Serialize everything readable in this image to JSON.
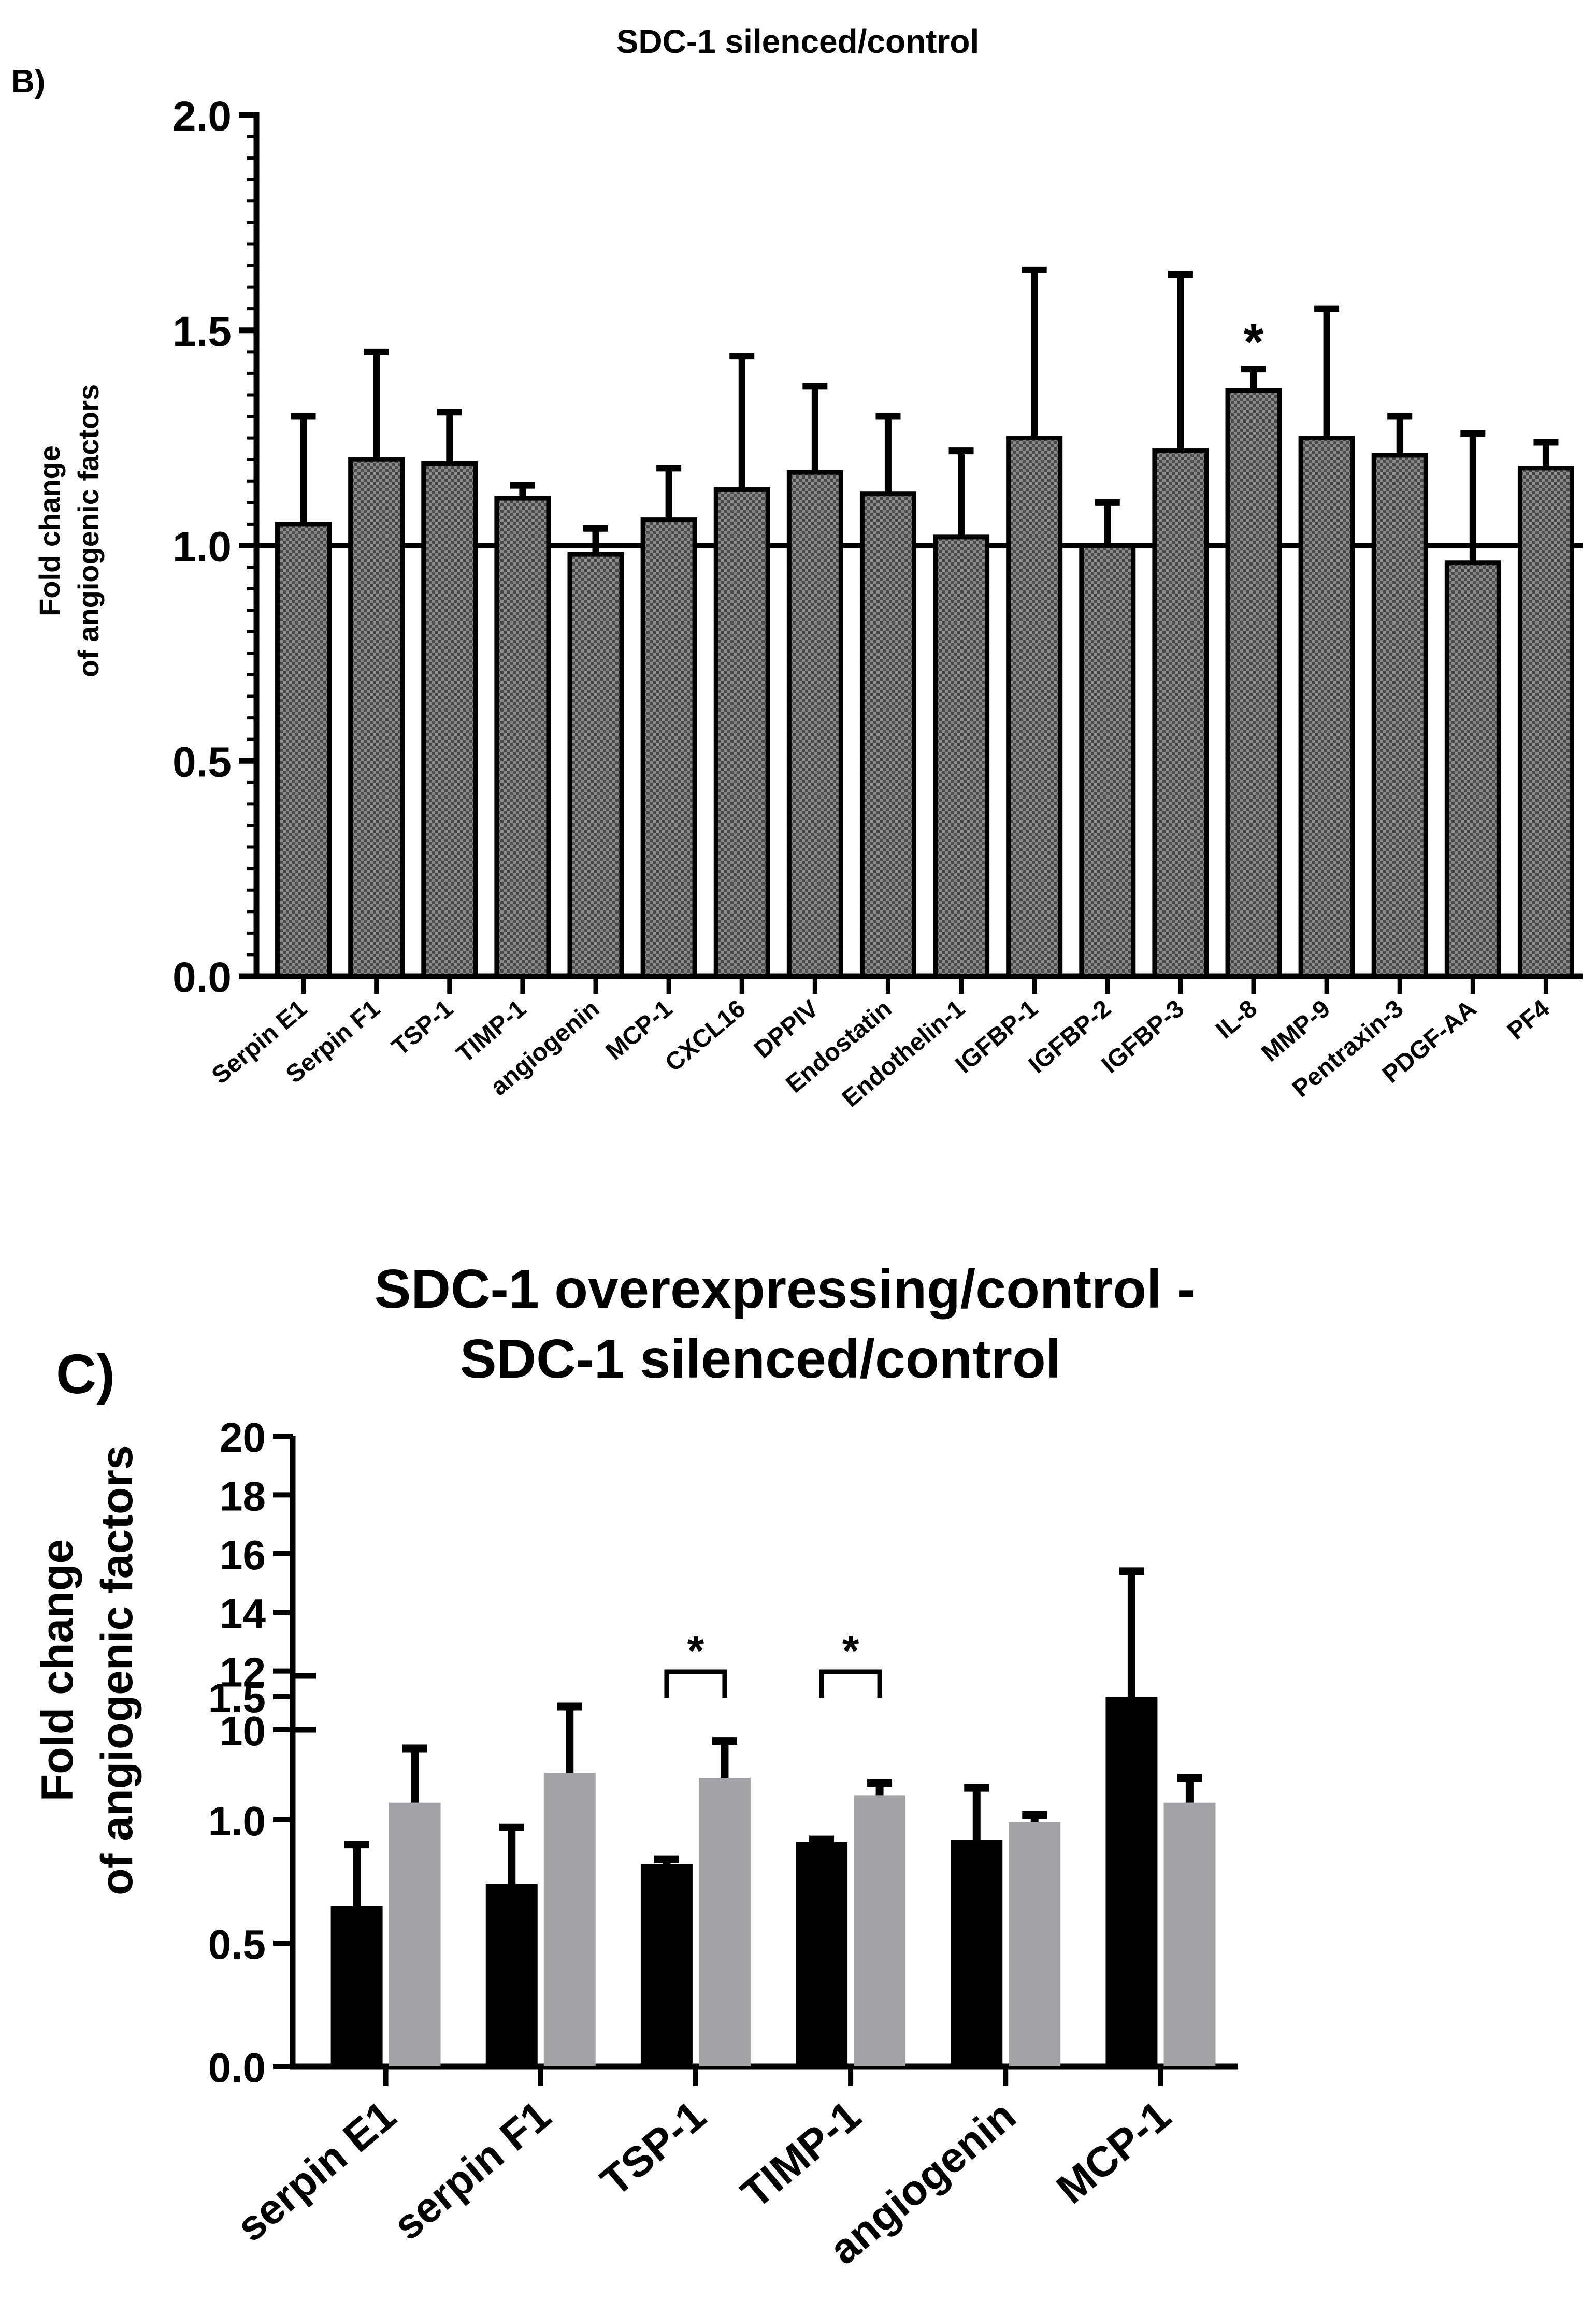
{
  "colors": {
    "hatched_fill": "#555555",
    "series_black": "#000000",
    "series_gray": "#a3a3a5",
    "axis": "#000000"
  },
  "chart_data": [
    {
      "panel": "B)",
      "type": "bar",
      "title": "SDC-1 silenced/control",
      "ylabel_lines": [
        "Fold change",
        "of angiogenic factors"
      ],
      "xlabel": "",
      "ylim": [
        0,
        2.0
      ],
      "yticks": [
        0.0,
        0.5,
        1.0,
        1.5,
        2.0
      ],
      "ytick_labels": [
        "0.0",
        "0.5",
        "1.0",
        "1.5",
        "2.0"
      ],
      "reference_line": 1.0,
      "categories": [
        "Serpin E1",
        "Serpin F1",
        "TSP-1",
        "TIMP-1",
        "angiogenin",
        "MCP-1",
        "CXCL16",
        "DPPIV",
        "Endostatin",
        "Endothelin-1",
        "IGFBP-1",
        "IGFBP-2",
        "IGFBP-3",
        "IL-8",
        "MMP-9",
        "Pentraxin-3",
        "PDGF-AA",
        "PF4"
      ],
      "values": [
        1.05,
        1.2,
        1.19,
        1.11,
        0.98,
        1.06,
        1.13,
        1.17,
        1.12,
        1.02,
        1.25,
        1.0,
        1.22,
        1.36,
        1.25,
        1.21,
        0.96,
        1.18
      ],
      "error_upper": [
        1.3,
        1.45,
        1.31,
        1.14,
        1.04,
        1.18,
        1.44,
        1.37,
        1.3,
        1.22,
        1.64,
        1.1,
        1.63,
        1.41,
        1.55,
        1.3,
        1.26,
        1.24
      ],
      "annotations": [
        {
          "category": "IL-8",
          "text": "*"
        }
      ],
      "legend": "none"
    },
    {
      "panel": "C)",
      "type": "bar",
      "title_lines": [
        "SDC-1 overexpressing/control -",
        "SDC-1 silenced/control"
      ],
      "ylabel_lines": [
        "Fold change",
        "of angiogenic factors"
      ],
      "xlabel": "",
      "axis_break": {
        "lower_ylim": [
          0,
          1.5
        ],
        "upper_ylim": [
          10,
          20
        ]
      },
      "lower_ticks": [
        0.0,
        0.5,
        1.0,
        1.5
      ],
      "lower_tick_labels": [
        "0.0",
        "0.5",
        "1.0",
        "1.5"
      ],
      "upper_ticks": [
        10,
        12,
        14,
        16,
        18,
        20
      ],
      "upper_tick_labels": [
        "10",
        "12",
        "14",
        "16",
        "18",
        "20"
      ],
      "categories": [
        "serpin E1",
        "serpin F1",
        "TSP-1",
        "TIMP-1",
        "angiogenin",
        "MCP-1"
      ],
      "series": [
        {
          "name": "SDC-1 overexpressing/control",
          "color_key": "series_black",
          "values": [
            0.65,
            0.74,
            0.82,
            0.91,
            0.92,
            1.5
          ],
          "error_upper": [
            0.9,
            0.97,
            0.84,
            0.92,
            1.13,
            15.4
          ]
        },
        {
          "name": "SDC-1 silenced/control",
          "color_key": "series_gray",
          "values": [
            1.07,
            1.19,
            1.17,
            1.1,
            0.99,
            1.07
          ],
          "error_upper": [
            1.29,
            1.46,
            1.32,
            1.15,
            1.02,
            1.17
          ]
        }
      ],
      "significance": [
        {
          "category": "TSP-1",
          "text": "*"
        },
        {
          "category": "TIMP-1",
          "text": "*"
        }
      ],
      "legend": "none"
    }
  ]
}
